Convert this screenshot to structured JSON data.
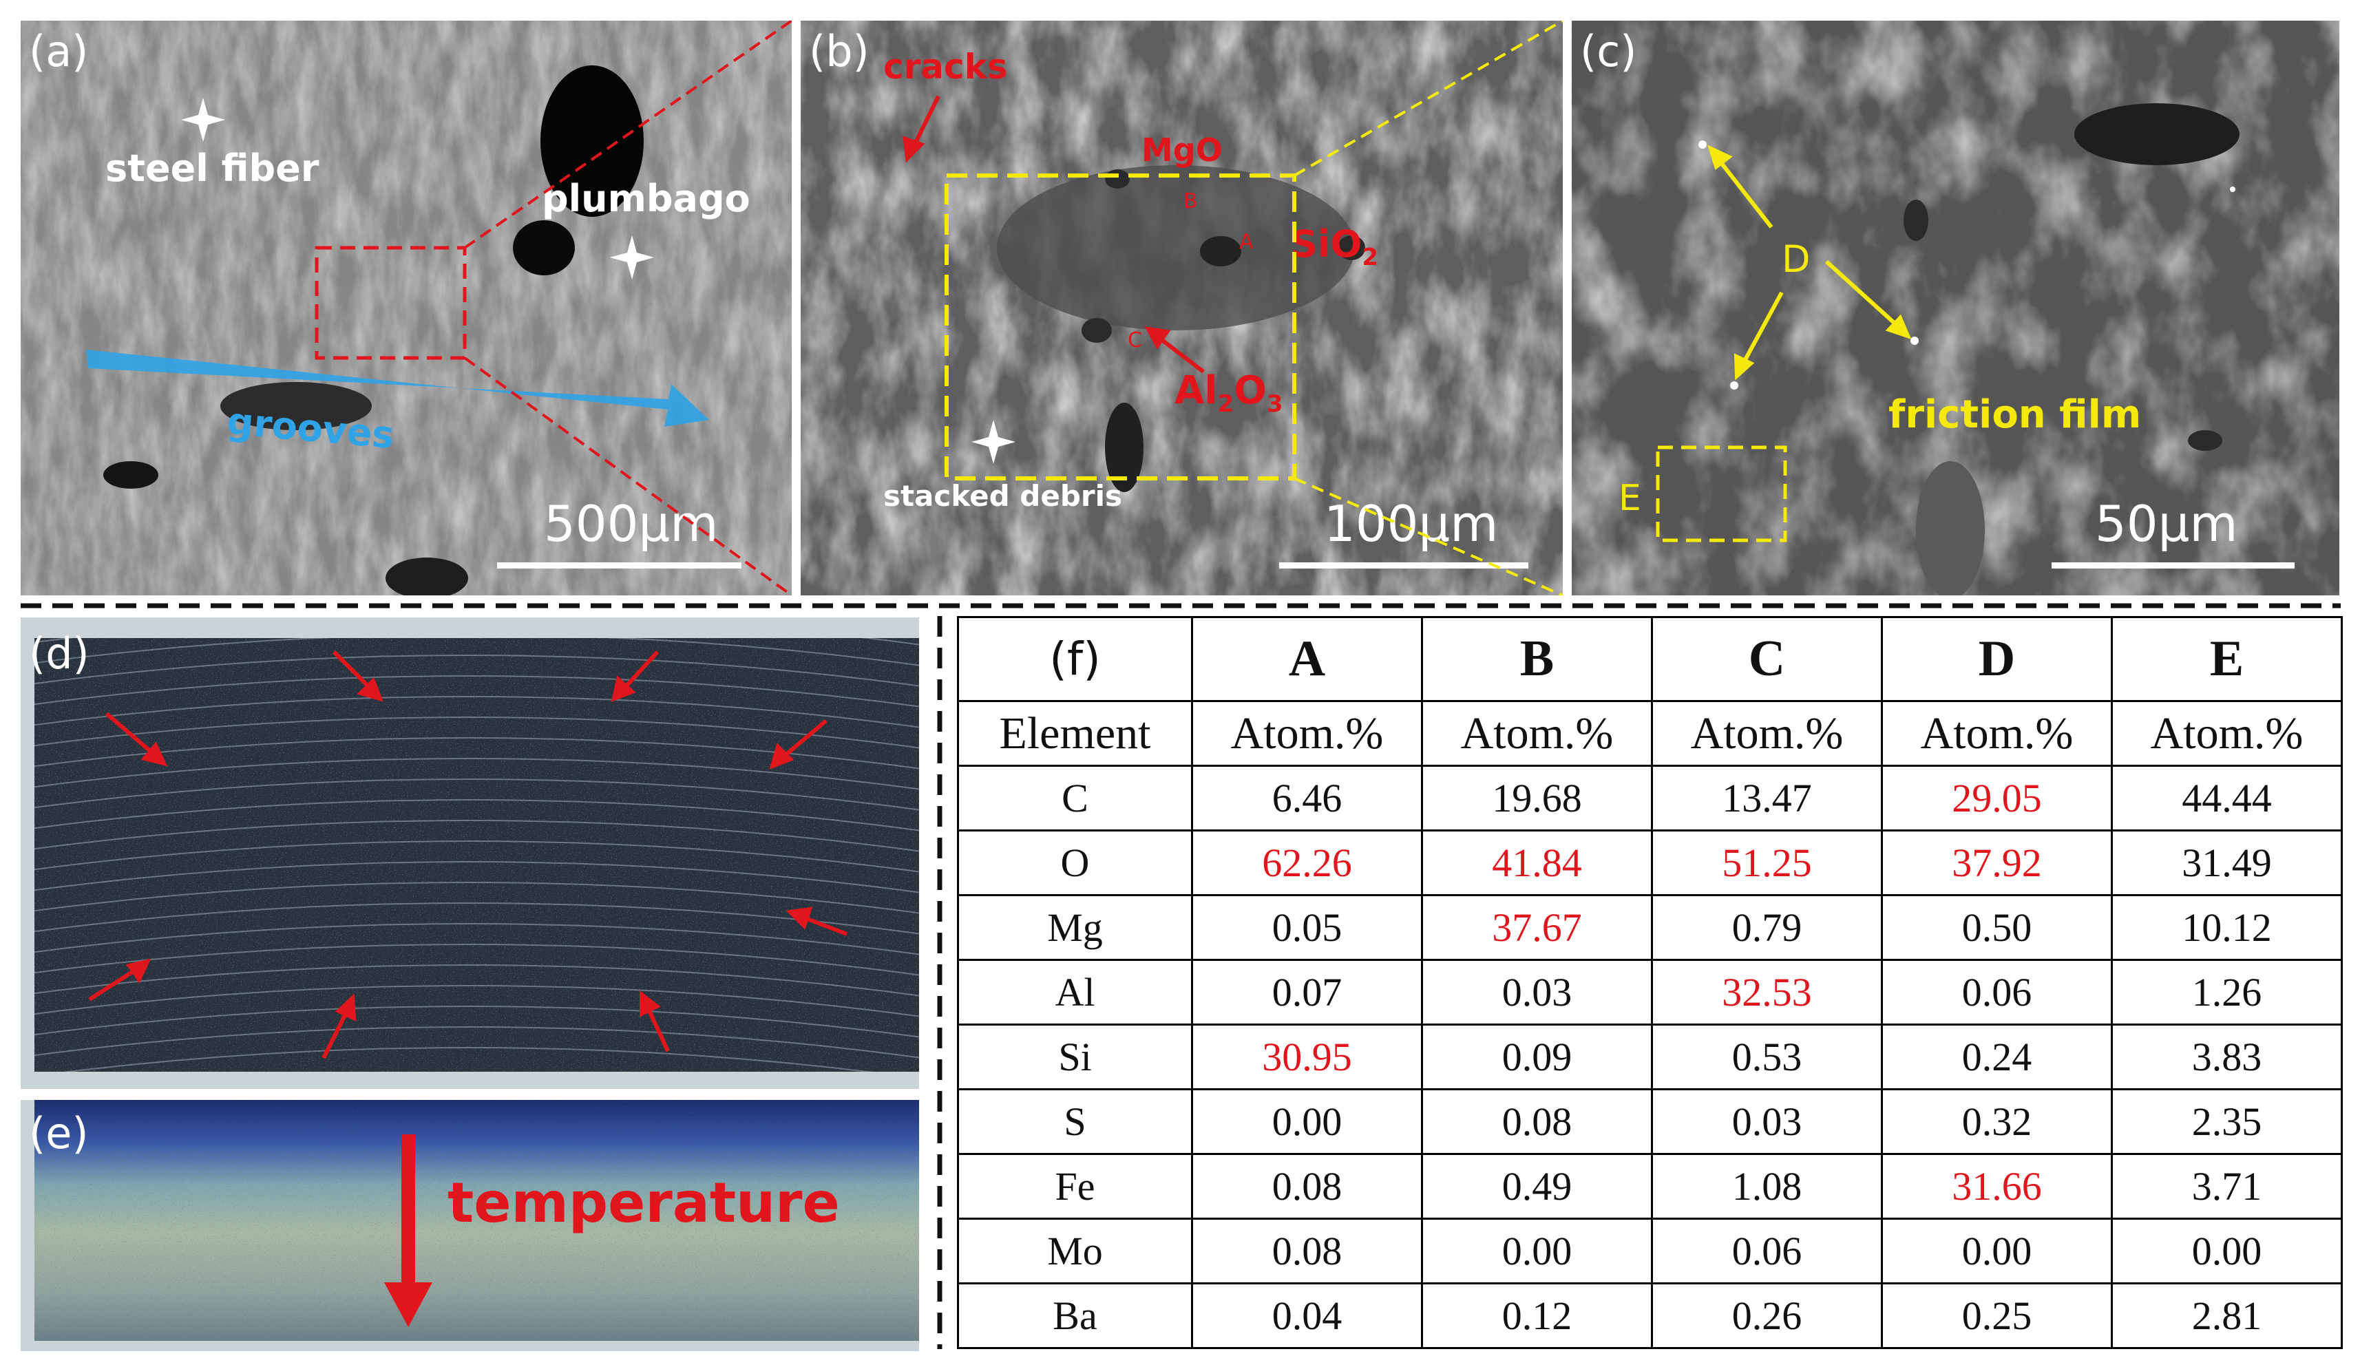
{
  "panels": {
    "a": {
      "label": "(a)",
      "annotations": {
        "steel_fiber": "steel fiber",
        "plumbago": "plumbago",
        "grooves": "grooves"
      },
      "scale": "500μm"
    },
    "b": {
      "label": "(b)",
      "annotations": {
        "cracks": "cracks",
        "mgo": "MgO",
        "sio2_main": "SiO",
        "sio2_sub": "2",
        "al2o3_a": "Al",
        "al2o3_s1": "2",
        "al2o3_o": "O",
        "al2o3_s2": "3",
        "point_a": "A",
        "point_b": "B",
        "point_c": "C",
        "stacked_debris": "stacked debris"
      },
      "scale": "100μm"
    },
    "c": {
      "label": "(c)",
      "annotations": {
        "point_d": "D",
        "point_e": "E",
        "friction_film": "friction film"
      },
      "scale": "50μm"
    },
    "d": {
      "label": "(d)"
    },
    "e": {
      "label": "(e)",
      "annotations": {
        "temperature": "temperature"
      }
    }
  },
  "table": {
    "label": "(f)",
    "columns": [
      "A",
      "B",
      "C",
      "D",
      "E"
    ],
    "header_row": {
      "first": "Element",
      "unit": "Atom.%"
    },
    "rows": [
      {
        "element": "C",
        "values": [
          "6.46",
          "19.68",
          "13.47",
          "29.05",
          "44.44"
        ],
        "highlight": [
          false,
          false,
          false,
          true,
          false
        ]
      },
      {
        "element": "O",
        "values": [
          "62.26",
          "41.84",
          "51.25",
          "37.92",
          "31.49"
        ],
        "highlight": [
          true,
          true,
          true,
          true,
          false
        ]
      },
      {
        "element": "Mg",
        "values": [
          "0.05",
          "37.67",
          "0.79",
          "0.50",
          "10.12"
        ],
        "highlight": [
          false,
          true,
          false,
          false,
          false
        ]
      },
      {
        "element": "Al",
        "values": [
          "0.07",
          "0.03",
          "32.53",
          "0.06",
          "1.26"
        ],
        "highlight": [
          false,
          false,
          true,
          false,
          false
        ]
      },
      {
        "element": "Si",
        "values": [
          "30.95",
          "0.09",
          "0.53",
          "0.24",
          "3.83"
        ],
        "highlight": [
          true,
          false,
          false,
          false,
          false
        ]
      },
      {
        "element": "S",
        "values": [
          "0.00",
          "0.08",
          "0.03",
          "0.32",
          "2.35"
        ],
        "highlight": [
          false,
          false,
          false,
          false,
          false
        ]
      },
      {
        "element": "Fe",
        "values": [
          "0.08",
          "0.49",
          "1.08",
          "31.66",
          "3.71"
        ],
        "highlight": [
          false,
          false,
          false,
          true,
          false
        ]
      },
      {
        "element": "Mo",
        "values": [
          "0.08",
          "0.00",
          "0.06",
          "0.00",
          "0.00"
        ],
        "highlight": [
          false,
          false,
          false,
          false,
          false
        ]
      },
      {
        "element": "Ba",
        "values": [
          "0.04",
          "0.12",
          "0.26",
          "0.25",
          "2.81"
        ],
        "highlight": [
          false,
          false,
          false,
          false,
          false
        ]
      }
    ]
  },
  "colors": {
    "annotation_red": "#e0161c",
    "annotation_yellow": "#f5e90b",
    "grooves_blue": "#2fa3e6",
    "scale_white": "#ffffff"
  }
}
